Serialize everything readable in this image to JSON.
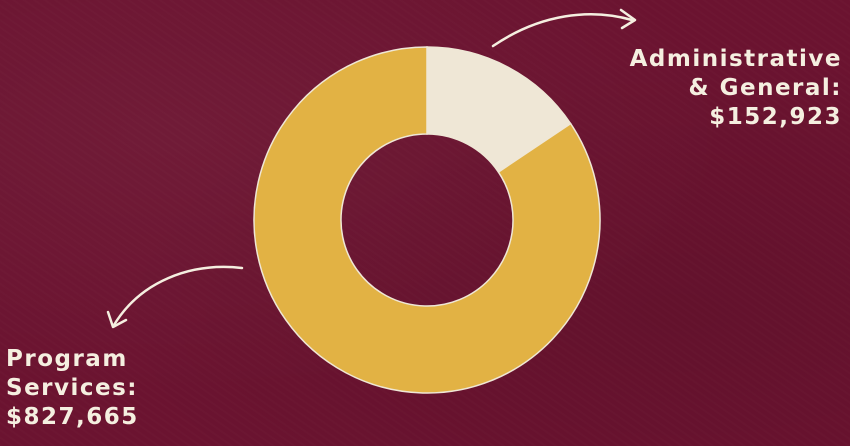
{
  "colors": {
    "background": "#6b1330",
    "program_services": "#e2b244",
    "administrative": "#efe7d6",
    "label_text": "#f5efe0"
  },
  "labels": {
    "administrative": [
      "Administrative",
      "& General:",
      "$152,923"
    ],
    "program": [
      "Program",
      "Services:",
      "$827,665"
    ]
  },
  "chart_data": {
    "type": "pie",
    "donut": true,
    "categories": [
      "Administrative & General",
      "Program Services"
    ],
    "values": [
      152923,
      827665
    ],
    "legend": "none"
  }
}
